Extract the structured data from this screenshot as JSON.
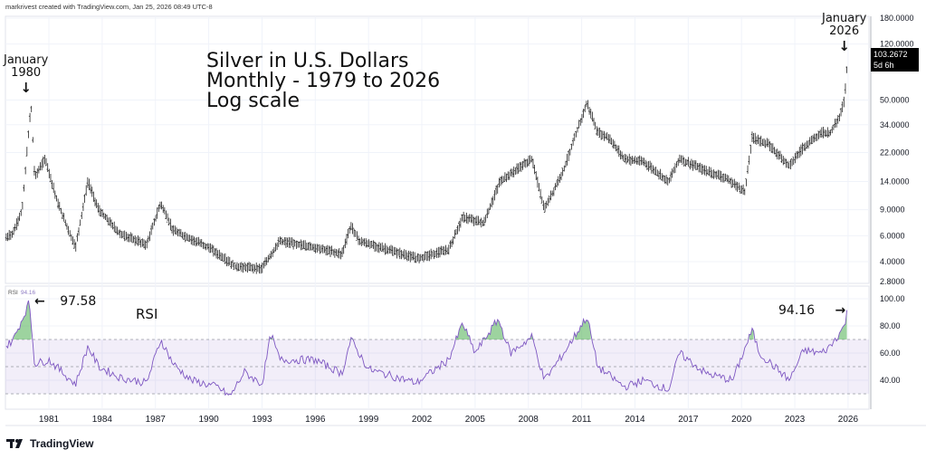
{
  "credit": "markrivest created with TradingView.com, Jan 25, 2026 08:49 UTC-8",
  "brand": "TradingView",
  "annotations": {
    "title_lines": [
      "Silver in U.S. Dollars",
      "Monthly - 1979 to 2026",
      "Log scale"
    ],
    "jan1980": [
      "January",
      "1980"
    ],
    "jan2026": [
      "January",
      "2026"
    ],
    "rsi_peak_1980": "97.58",
    "rsi_label": "RSI",
    "rsi_now": "94.16",
    "arrow_down": "↓",
    "arrow_left": "←",
    "arrow_right": "→"
  },
  "price_badge": {
    "price": "103.2672",
    "countdown": "5d 6h"
  },
  "rsi_legend": {
    "name": "RSI",
    "value": "94.16"
  },
  "chart_data": [
    {
      "type": "line",
      "title": "Silver in U.S. Dollars, Monthly (log scale)",
      "yscale": "log",
      "ylim": [
        2.8,
        180
      ],
      "yticks": [
        "180.0000",
        "120.0000",
        "50.0000",
        "34.0000",
        "22.0000",
        "14.0000",
        "9.0000",
        "6.0000",
        "4.0000",
        "2.8000"
      ],
      "ytick_values": [
        180,
        120,
        50,
        34,
        22,
        14,
        9,
        6,
        4,
        2.8
      ],
      "x": [
        1978.6,
        1979.0,
        1979.5,
        1980.0,
        1980.2,
        1980.8,
        1981.5,
        1982.5,
        1983.2,
        1983.8,
        1985,
        1986.5,
        1987.3,
        1988,
        1990,
        1991.5,
        1993,
        1994,
        1996,
        1997.5,
        1998,
        1998.5,
        2001.7,
        2003.5,
        2004.3,
        2005.5,
        2006.4,
        2008.2,
        2008.9,
        2010,
        2011.3,
        2011.9,
        2012.5,
        2013.4,
        2014.5,
        2015.9,
        2016.5,
        2018,
        2019,
        2020.2,
        2020.6,
        2021.5,
        2022.7,
        2023.5,
        2024.5,
        2025.0,
        2025.5,
        2025.8,
        2026.0
      ],
      "values": [
        5.8,
        6.3,
        9,
        48,
        15,
        20,
        10,
        5,
        14,
        9,
        6.2,
        5.2,
        10,
        6.5,
        5,
        3.7,
        3.6,
        5.5,
        5,
        4.5,
        7,
        5.5,
        4.2,
        4.8,
        8,
        7.3,
        14,
        20,
        9,
        17,
        48,
        30,
        28,
        20,
        19,
        14,
        20,
        16.5,
        15,
        12,
        28,
        25,
        18,
        24,
        30,
        30,
        38,
        50,
        103.27
      ]
    },
    {
      "type": "line",
      "title": "RSI",
      "ylim": [
        20,
        105
      ],
      "yticks": [
        "100.00",
        "80.00",
        "60.00",
        "40.00"
      ],
      "ytick_values": [
        100,
        80,
        60,
        40
      ],
      "bands": [
        30,
        50,
        70
      ],
      "x": [
        1978.6,
        1979,
        1979.5,
        1979.9,
        1980.2,
        1981,
        1982.5,
        1983.2,
        1983.8,
        1985,
        1986.5,
        1987.3,
        1988,
        1989,
        1990.5,
        1991.2,
        1992,
        1993,
        1993.5,
        1994,
        1996,
        1997.5,
        1998,
        1999,
        2001.7,
        2003.5,
        2004.3,
        2005,
        2006.3,
        2007,
        2008.2,
        2008.9,
        2010,
        2011.3,
        2011.9,
        2013.4,
        2014.5,
        2015.9,
        2016.5,
        2018,
        2019.5,
        2020.6,
        2021,
        2022.7,
        2023.5,
        2024.5,
        2025,
        2025.8,
        2026
      ],
      "values": [
        65,
        70,
        85,
        97.58,
        52,
        55,
        37,
        65,
        50,
        42,
        38,
        70,
        52,
        40,
        35,
        28,
        46,
        37,
        74,
        55,
        55,
        45,
        70,
        48,
        38,
        55,
        82,
        60,
        85,
        60,
        72,
        40,
        60,
        87,
        50,
        35,
        40,
        33,
        60,
        45,
        40,
        77,
        60,
        40,
        62,
        60,
        65,
        80,
        94.16
      ]
    }
  ],
  "xaxis": {
    "ticks": [
      "1981",
      "1984",
      "1987",
      "1990",
      "1993",
      "1996",
      "1999",
      "2002",
      "2005",
      "2008",
      "2011",
      "2014",
      "2017",
      "2020",
      "2023",
      "2026"
    ],
    "tick_values": [
      1981,
      1984,
      1987,
      1990,
      1993,
      1996,
      1999,
      2002,
      2005,
      2008,
      2011,
      2014,
      2017,
      2020,
      2023,
      2026
    ]
  }
}
